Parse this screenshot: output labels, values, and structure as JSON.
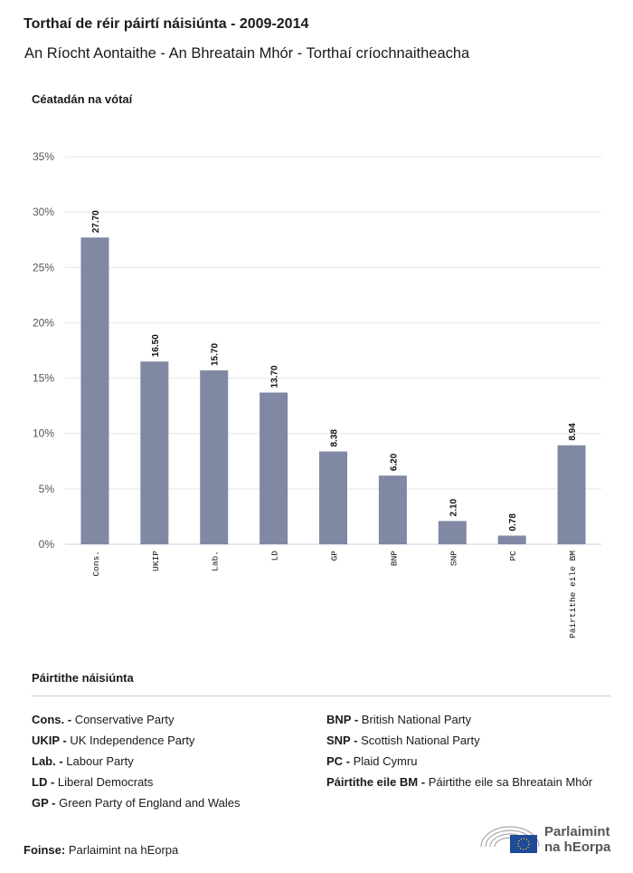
{
  "title": "Torthaí de réir páirtí náisiúnta - 2009-2014",
  "subtitle": "An Ríocht Aontaithe - An Bhreatain Mhór - Torthaí críochnaitheacha",
  "chart_data": {
    "type": "bar",
    "ylabel": "Céatadán na vótaí",
    "categories": [
      "Cons.",
      "UKIP",
      "Lab.",
      "LD",
      "GP",
      "BNP",
      "SNP",
      "PC",
      "Páirtithe eile BM"
    ],
    "values": [
      27.7,
      16.5,
      15.7,
      13.7,
      8.38,
      6.2,
      2.1,
      0.78,
      8.94
    ],
    "value_labels": [
      "27.70",
      "16.50",
      "15.70",
      "13.70",
      "8.38",
      "6.20",
      "2.10",
      "0.78",
      "8.94"
    ],
    "ylim": [
      0,
      35
    ],
    "yticks": [
      "0%",
      "5%",
      "10%",
      "15%",
      "20%",
      "25%",
      "30%",
      "35%"
    ],
    "grid": true,
    "bar_color": "#8088a4"
  },
  "legend": {
    "title": "Páirtithe náisiúnta",
    "items": [
      {
        "abbr": "Cons. -",
        "name": "Conservative Party"
      },
      {
        "abbr": "UKIP -",
        "name": "UK Independence Party"
      },
      {
        "abbr": "Lab. -",
        "name": "Labour Party"
      },
      {
        "abbr": "LD -",
        "name": "Liberal Democrats"
      },
      {
        "abbr": "GP -",
        "name": "Green Party of England and Wales"
      },
      {
        "abbr": "BNP -",
        "name": "British National Party"
      },
      {
        "abbr": "SNP -",
        "name": "Scottish National Party"
      },
      {
        "abbr": "PC -",
        "name": "Plaid Cymru"
      },
      {
        "abbr": "Páirtithe eile BM -",
        "name": "Páirtithe eile sa Bhreatain Mhór"
      }
    ]
  },
  "source": {
    "label": "Foinse:",
    "value": "Parlaimint na hEorpa"
  },
  "logo": {
    "line1": "Parlaimint",
    "line2": "na hEorpa"
  }
}
